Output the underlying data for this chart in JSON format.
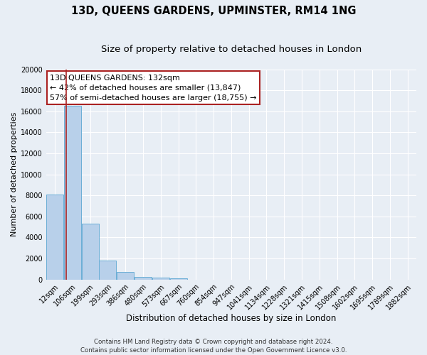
{
  "title": "13D, QUEENS GARDENS, UPMINSTER, RM14 1NG",
  "subtitle": "Size of property relative to detached houses in London",
  "xlabel": "Distribution of detached houses by size in London",
  "ylabel": "Number of detached properties",
  "bar_labels": [
    "12sqm",
    "106sqm",
    "199sqm",
    "293sqm",
    "386sqm",
    "480sqm",
    "573sqm",
    "667sqm",
    "760sqm",
    "854sqm",
    "947sqm",
    "1041sqm",
    "1134sqm",
    "1228sqm",
    "1321sqm",
    "1415sqm",
    "1508sqm",
    "1602sqm",
    "1695sqm",
    "1789sqm",
    "1882sqm"
  ],
  "bar_values": [
    8100,
    16500,
    5300,
    1800,
    750,
    250,
    200,
    150,
    0,
    0,
    0,
    0,
    0,
    0,
    0,
    0,
    0,
    0,
    0,
    0,
    0
  ],
  "bar_color": "#b8d0ea",
  "bar_edge_color": "#6aaed6",
  "vline_color": "#aa2222",
  "ylim": [
    0,
    20000
  ],
  "yticks": [
    0,
    2000,
    4000,
    6000,
    8000,
    10000,
    12000,
    14000,
    16000,
    18000,
    20000
  ],
  "annotation_title": "13D QUEENS GARDENS: 132sqm",
  "annotation_line1": "← 42% of detached houses are smaller (13,847)",
  "annotation_line2": "57% of semi-detached houses are larger (18,755) →",
  "annotation_box_facecolor": "#ffffff",
  "annotation_box_edgecolor": "#aa2222",
  "footer_line1": "Contains HM Land Registry data © Crown copyright and database right 2024.",
  "footer_line2": "Contains public sector information licensed under the Open Government Licence v3.0.",
  "bg_color": "#e8eef5",
  "plot_bg_color": "#e8eef5",
  "title_fontsize": 10.5,
  "subtitle_fontsize": 9.5,
  "xlabel_fontsize": 8.5,
  "ylabel_fontsize": 8.0,
  "tick_fontsize": 7.0,
  "annot_fontsize": 8.0,
  "footer_fontsize": 6.2
}
